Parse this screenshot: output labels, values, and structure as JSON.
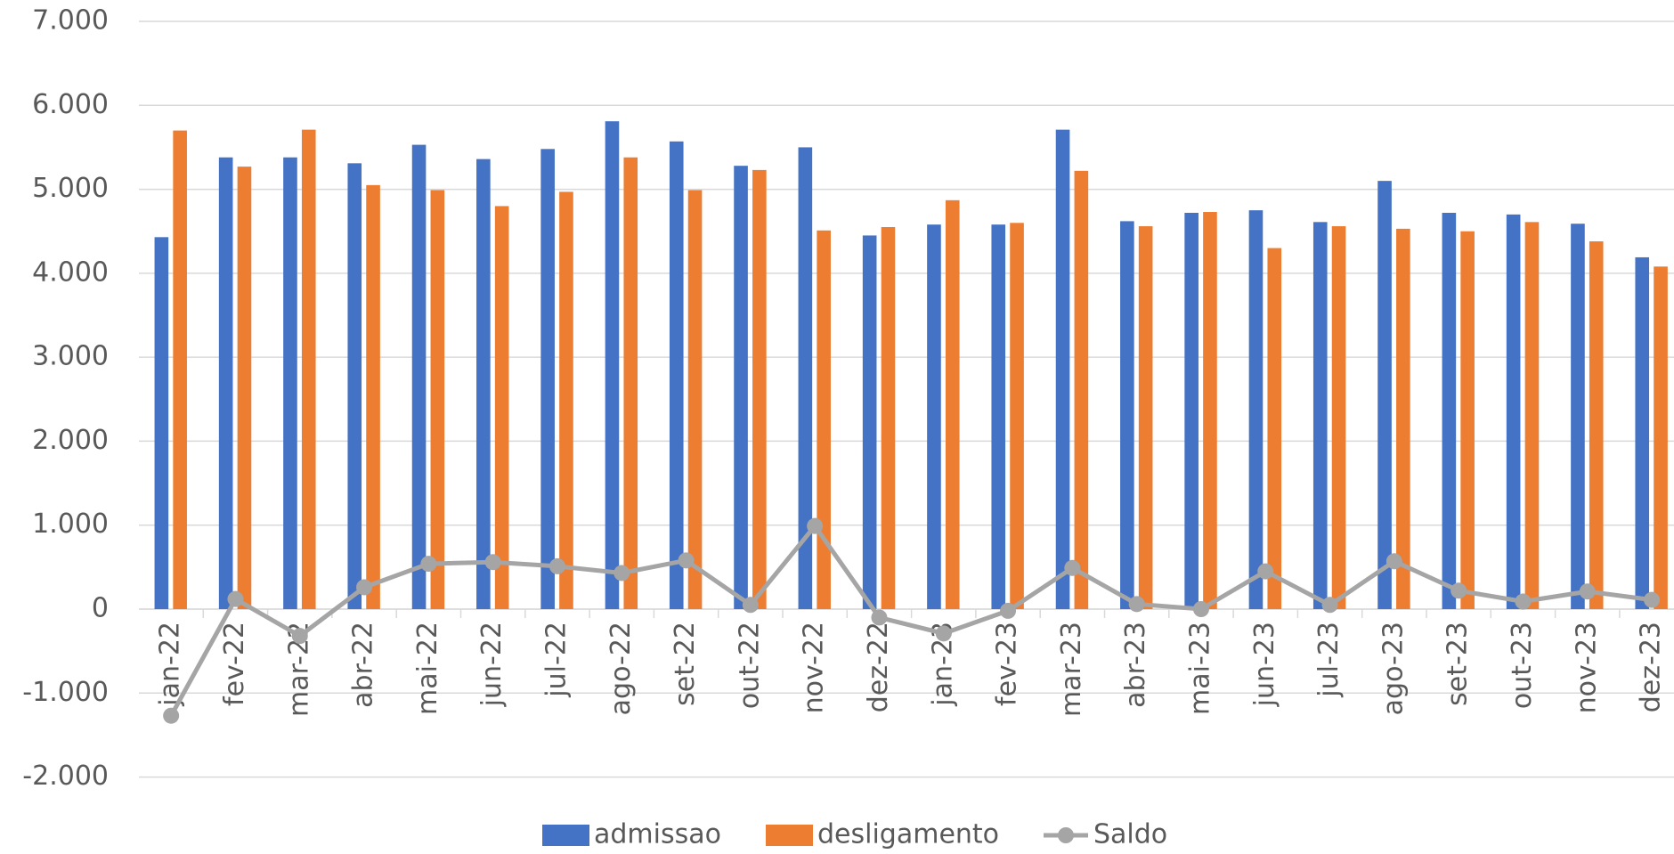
{
  "chart_data": {
    "type": "bar",
    "categories": [
      "jan-22",
      "fev-22",
      "mar-22",
      "abr-22",
      "mai-22",
      "jun-22",
      "jul-22",
      "ago-22",
      "set-22",
      "out-22",
      "nov-22",
      "dez-22",
      "jan-23",
      "fev-23",
      "mar-23",
      "abr-23",
      "mai-23",
      "jun-23",
      "jul-23",
      "ago-23",
      "set-23",
      "out-23",
      "nov-23",
      "dez-23"
    ],
    "series": [
      {
        "name": "admissao",
        "color": "#4472c4",
        "type": "bar",
        "values": [
          4430,
          5380,
          5380,
          5310,
          5530,
          5360,
          5480,
          5810,
          5570,
          5280,
          5500,
          4450,
          4580,
          4580,
          5710,
          4620,
          4720,
          4750,
          4610,
          5100,
          4720,
          4700,
          4590,
          4190
        ]
      },
      {
        "name": "desligamento",
        "color": "#ed7d31",
        "type": "bar",
        "values": [
          5700,
          5270,
          5710,
          5050,
          4990,
          4800,
          4970,
          5380,
          4990,
          5230,
          4510,
          4550,
          4870,
          4600,
          5220,
          4560,
          4730,
          4300,
          4560,
          4530,
          4500,
          4610,
          4380,
          4080
        ]
      },
      {
        "name": "Saldo",
        "color": "#a5a5a5",
        "type": "line",
        "values": [
          -1270,
          120,
          -320,
          260,
          540,
          560,
          510,
          430,
          580,
          50,
          990,
          -100,
          -290,
          -20,
          490,
          60,
          0,
          450,
          50,
          570,
          220,
          90,
          210,
          110
        ]
      }
    ],
    "ylim": [
      -2000,
      7000
    ],
    "yticks": [
      {
        "value": -2000,
        "label": "-2.000"
      },
      {
        "value": -1000,
        "label": "-1.000"
      },
      0,
      {
        "value": 1000,
        "label": "1.000"
      },
      {
        "value": 2000,
        "label": "2.000"
      },
      {
        "value": 3000,
        "label": "3.000"
      },
      {
        "value": 4000,
        "label": "4.000"
      },
      {
        "value": 5000,
        "label": "5.000"
      },
      {
        "value": 6000,
        "label": "6.000"
      },
      {
        "value": 7000,
        "label": "7.000"
      }
    ],
    "grid": true,
    "legend": "bottom"
  }
}
